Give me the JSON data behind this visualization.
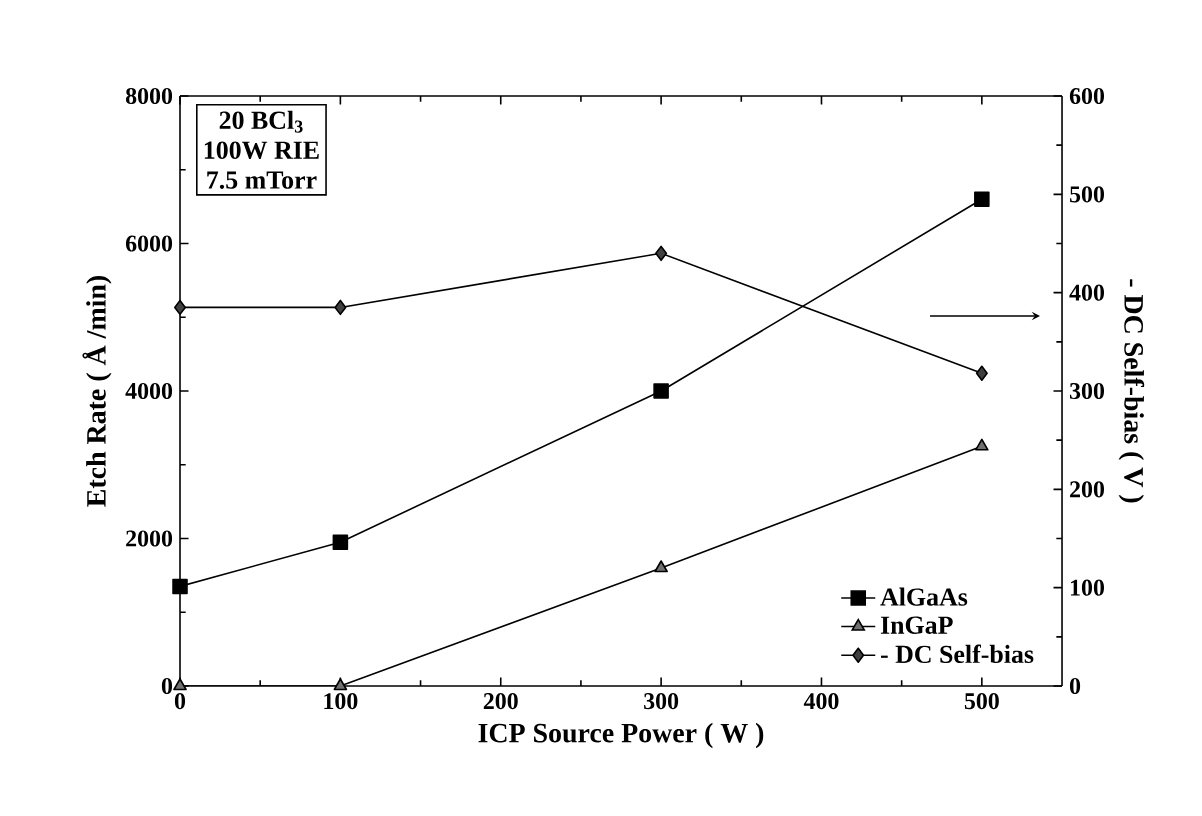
{
  "chart_data": {
    "type": "line",
    "xlabel": "ICP Source Power ( W )",
    "ylabel": "Etch Rate ( Å /min)",
    "y2label": "- DC Self-bias ( V )",
    "x": [
      0,
      100,
      300,
      500
    ],
    "series": [
      {
        "name": "AlGaAs",
        "color": "#000000",
        "marker": "square",
        "values": [
          1350,
          1950,
          4000,
          6600
        ]
      },
      {
        "name": "InGaP",
        "color": "#707070",
        "marker": "triangle",
        "values": [
          0,
          0,
          1600,
          3250
        ]
      },
      {
        "name": "- DC Self-bias",
        "color": "#404040",
        "marker": "diamond",
        "axis": "y2",
        "values": [
          385,
          385,
          440,
          318
        ]
      }
    ],
    "xlim": [
      0,
      550
    ],
    "xticks": [
      0,
      100,
      200,
      300,
      400,
      500
    ],
    "ylim": [
      0,
      8000
    ],
    "yticks": [
      0,
      2000,
      4000,
      6000,
      8000
    ],
    "y2lim": [
      0,
      600
    ],
    "y2ticks": [
      0,
      100,
      200,
      300,
      400,
      500,
      600
    ],
    "annotations": [
      "20 BCl$_{3}$",
      "100W RIE",
      "7.5 mTorr"
    ],
    "legend": "bottom right",
    "grid": false,
    "line_style": "solid"
  }
}
